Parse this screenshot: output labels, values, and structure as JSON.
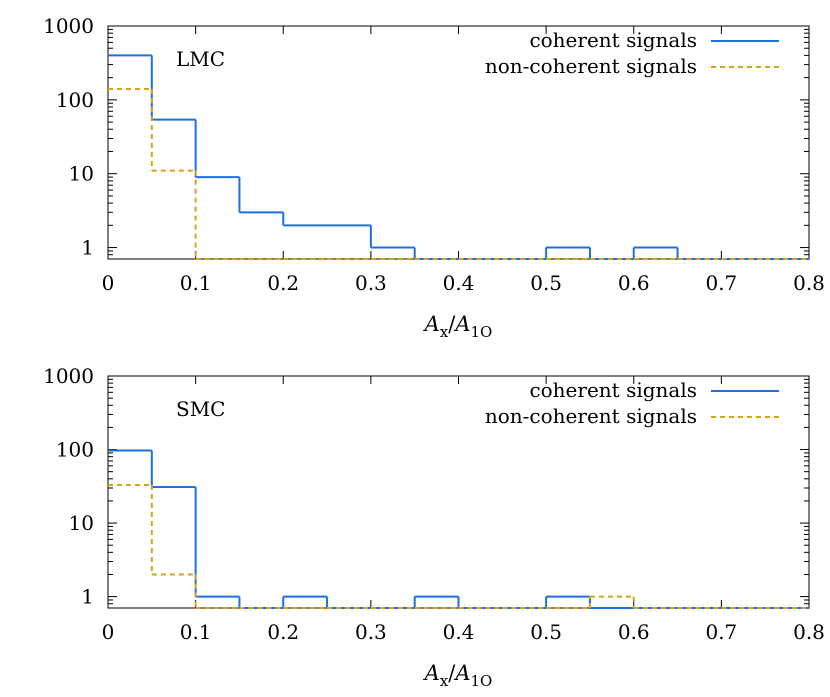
{
  "chart_data": [
    {
      "type": "histogram",
      "panel_label": "LMC",
      "xlabel": {
        "main": "A",
        "sub1": "x",
        "sep": "/",
        "main2": "A",
        "sub2": "1O"
      },
      "xlim": [
        0,
        0.8
      ],
      "ylim": [
        0.7,
        1000
      ],
      "yscale": "log",
      "x_ticks": [
        "0",
        "0.1",
        "0.2",
        "0.3",
        "0.4",
        "0.5",
        "0.6",
        "0.7",
        "0.8"
      ],
      "y_ticks": [
        {
          "value": 1,
          "label": "1"
        },
        {
          "value": 10,
          "label": "10"
        },
        {
          "value": 100,
          "label": "100"
        },
        {
          "value": 1000,
          "label": "1000"
        }
      ],
      "legend_position": "top-right",
      "bin_width": 0.05,
      "bin_starts": [
        0,
        0.05,
        0.1,
        0.15,
        0.2,
        0.25,
        0.3,
        0.35,
        0.4,
        0.45,
        0.5,
        0.55,
        0.6,
        0.65,
        0.7,
        0.75
      ],
      "series": [
        {
          "name": "coherent signals",
          "style": "solid",
          "color": "#1f6fdc",
          "values": [
            400,
            54,
            9,
            3,
            2,
            2,
            1,
            0,
            0,
            0,
            1,
            0,
            1,
            0,
            0,
            0
          ]
        },
        {
          "name": "non-coherent signals",
          "style": "dashed",
          "color": "#d9a21b",
          "values": [
            140,
            11,
            0,
            0,
            0,
            0,
            0,
            0,
            0,
            0,
            0,
            0,
            0,
            0,
            0,
            0
          ]
        }
      ]
    },
    {
      "type": "histogram",
      "panel_label": "SMC",
      "xlabel": {
        "main": "A",
        "sub1": "x",
        "sep": "/",
        "main2": "A",
        "sub2": "1O"
      },
      "xlim": [
        0,
        0.8
      ],
      "ylim": [
        0.7,
        1000
      ],
      "yscale": "log",
      "x_ticks": [
        "0",
        "0.1",
        "0.2",
        "0.3",
        "0.4",
        "0.5",
        "0.6",
        "0.7",
        "0.8"
      ],
      "y_ticks": [
        {
          "value": 1,
          "label": "1"
        },
        {
          "value": 10,
          "label": "10"
        },
        {
          "value": 100,
          "label": "100"
        },
        {
          "value": 1000,
          "label": "1000"
        }
      ],
      "legend_position": "top-right",
      "bin_width": 0.05,
      "bin_starts": [
        0,
        0.05,
        0.1,
        0.15,
        0.2,
        0.25,
        0.3,
        0.35,
        0.4,
        0.45,
        0.5,
        0.55,
        0.6,
        0.65,
        0.7,
        0.75
      ],
      "series": [
        {
          "name": "coherent signals",
          "style": "solid",
          "color": "#1f6fdc",
          "values": [
            97,
            31,
            1,
            0,
            1,
            0,
            0,
            1,
            0,
            0,
            1,
            0,
            0,
            0,
            0,
            0
          ]
        },
        {
          "name": "non-coherent signals",
          "style": "dashed",
          "color": "#d9a21b",
          "values": [
            33,
            2,
            0,
            0,
            0,
            0,
            0,
            0,
            0,
            0,
            0,
            1,
            0,
            0,
            0,
            0
          ]
        }
      ]
    }
  ]
}
